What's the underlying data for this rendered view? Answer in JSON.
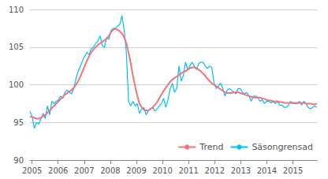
{
  "chart_data": {
    "type": "line",
    "x": [
      2004.92,
      2005.004,
      2005.0879,
      2005.1719,
      2005.2559,
      2005.3398,
      2005.4238,
      2005.5078,
      2005.5918,
      2005.6757,
      2005.7597,
      2005.8437,
      2005.9276,
      2006.0116,
      2006.0956,
      2006.1795,
      2006.2635,
      2006.3475,
      2006.4315,
      2006.5154,
      2006.5994,
      2006.6834,
      2006.7673,
      2006.8513,
      2006.9353,
      2007.0192,
      2007.1032,
      2007.1872,
      2007.2711,
      2007.3551,
      2007.4391,
      2007.5231,
      2007.607,
      2007.691,
      2007.775,
      2007.8589,
      2007.9429,
      2008.0269,
      2008.1108,
      2008.1948,
      2008.2788,
      2008.3627,
      2008.4467,
      2008.5307,
      2008.6147,
      2008.6986,
      2008.7826,
      2008.8666,
      2008.9505,
      2009.0345,
      2009.1185,
      2009.2024,
      2009.2864,
      2009.3704,
      2009.4544,
      2009.5383,
      2009.6223,
      2009.7063,
      2009.7902,
      2009.8742,
      2009.9582,
      2010.0421,
      2010.1261,
      2010.2101,
      2010.294,
      2010.378,
      2010.462,
      2010.546,
      2010.6299,
      2010.7139,
      2010.7979,
      2010.8818,
      2010.9658,
      2011.0498,
      2011.1337,
      2011.2177,
      2011.3017,
      2011.3856,
      2011.4696,
      2011.5536,
      2011.6376,
      2011.7215,
      2011.8055,
      2011.8895,
      2011.9734,
      2012.0574,
      2012.1414,
      2012.2253,
      2012.3093,
      2012.3933,
      2012.4773,
      2012.5612,
      2012.6452,
      2012.7292,
      2012.8131,
      2012.8971,
      2012.9811,
      2013.065,
      2013.149,
      2013.233,
      2013.3169,
      2013.4009,
      2013.4849,
      2013.5689,
      2013.6528,
      2013.7368,
      2013.8208,
      2013.9047,
      2013.9887,
      2014.0727,
      2014.1566,
      2014.2406,
      2014.3246,
      2014.4085,
      2014.4925,
      2014.5765,
      2014.6605,
      2014.7444,
      2014.8284,
      2014.9124,
      2014.9963,
      2015.0803,
      2015.1643,
      2015.2482,
      2015.3322,
      2015.4162,
      2015.5002,
      2015.5841,
      2015.6681,
      2015.7521,
      2015.836,
      2015.92
    ],
    "series": [
      {
        "name": "Säsongrensad",
        "color": "#00BFFF",
        "values": [
          96.5,
          95.8,
          94.2,
          95.0,
          94.8,
          95.5,
          96.2,
          95.5,
          97.2,
          96.0,
          97.8,
          97.5,
          97.8,
          98.0,
          98.5,
          98.2,
          99.0,
          99.3,
          99.0,
          98.8,
          99.5,
          100.8,
          101.8,
          102.5,
          103.2,
          103.8,
          104.3,
          104.0,
          104.8,
          105.0,
          105.5,
          105.8,
          106.5,
          105.2,
          105.0,
          106.3,
          106.0,
          107.2,
          107.5,
          107.5,
          107.8,
          108.0,
          109.2,
          107.2,
          104.3,
          97.8,
          97.2,
          97.8,
          97.2,
          97.5,
          96.2,
          96.8,
          97.0,
          96.0,
          96.5,
          96.8,
          97.0,
          96.5,
          96.8,
          97.2,
          97.5,
          98.2,
          97.0,
          98.0,
          99.5,
          100.2,
          99.0,
          99.5,
          102.5,
          100.5,
          101.2,
          103.0,
          102.0,
          102.5,
          103.0,
          102.5,
          102.0,
          102.8,
          103.0,
          103.0,
          102.5,
          102.2,
          102.5,
          102.3,
          100.3,
          99.5,
          99.8,
          100.2,
          99.5,
          98.5,
          99.3,
          99.5,
          99.3,
          99.0,
          98.8,
          99.5,
          99.5,
          99.0,
          98.8,
          99.0,
          98.5,
          97.8,
          98.5,
          98.5,
          98.3,
          97.8,
          98.0,
          97.5,
          97.8,
          97.8,
          97.6,
          97.8,
          97.5,
          97.8,
          97.3,
          97.3,
          97.0,
          97.0,
          97.3,
          97.8,
          97.5,
          97.5,
          97.5,
          97.8,
          97.3,
          97.8,
          97.5,
          97.0,
          96.8,
          97.0,
          97.2,
          97.0
        ]
      },
      {
        "name": "Trend",
        "color": "#F4737A",
        "values": [
          95.8,
          95.7,
          95.6,
          95.5,
          95.5,
          95.6,
          95.8,
          96.0,
          96.3,
          96.6,
          96.9,
          97.2,
          97.5,
          97.8,
          98.1,
          98.4,
          98.7,
          98.9,
          99.1,
          99.3,
          99.6,
          100.0,
          100.5,
          101.1,
          101.8,
          102.5,
          103.2,
          103.8,
          104.3,
          104.7,
          105.0,
          105.3,
          105.5,
          105.7,
          105.9,
          106.1,
          106.5,
          107.0,
          107.3,
          107.4,
          107.3,
          107.1,
          106.8,
          106.3,
          105.5,
          104.3,
          102.8,
          101.2,
          99.8,
          98.5,
          97.5,
          97.0,
          96.7,
          96.6,
          96.6,
          96.8,
          97.0,
          97.3,
          97.7,
          98.2,
          98.7,
          99.2,
          99.6,
          100.0,
          100.4,
          100.7,
          100.9,
          101.1,
          101.3,
          101.5,
          101.7,
          101.8,
          102.0,
          102.2,
          102.3,
          102.3,
          102.2,
          102.0,
          101.8,
          101.5,
          101.2,
          100.8,
          100.5,
          100.2,
          100.0,
          99.8,
          99.6,
          99.4,
          99.2,
          99.0,
          98.9,
          98.9,
          98.9,
          99.0,
          99.0,
          99.0,
          98.9,
          98.8,
          98.7,
          98.6,
          98.5,
          98.4,
          98.3,
          98.3,
          98.3,
          98.3,
          98.2,
          98.1,
          98.0,
          97.9,
          97.9,
          97.8,
          97.8,
          97.8,
          97.7,
          97.7,
          97.6,
          97.6,
          97.6,
          97.6,
          97.6,
          97.6,
          97.6,
          97.6,
          97.6,
          97.6,
          97.5,
          97.5,
          97.5,
          97.4,
          97.4,
          97.5
        ]
      }
    ],
    "xlim": [
      2004.92,
      2015.92
    ],
    "xticks": [
      2005,
      2006,
      2007,
      2008,
      2009,
      2010,
      2011,
      2012,
      2013,
      2014,
      2015
    ],
    "ylim": [
      90,
      110
    ],
    "yticks": [
      90,
      95,
      100,
      105,
      110
    ],
    "grid": true,
    "legend": "lower right"
  }
}
